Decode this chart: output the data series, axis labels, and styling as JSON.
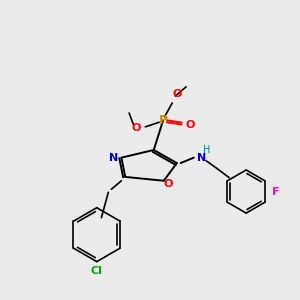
{
  "background_color": "#ebebeb",
  "figsize": [
    3.0,
    3.0
  ],
  "dpi": 100,
  "colors": {
    "bond": "#000000",
    "N": "#0000CC",
    "O": "#FF0000",
    "P": "#CC8800",
    "Cl": "#00AA00",
    "F": "#FF00CC",
    "NH_H": "#008888",
    "bg": "#ebebeb"
  }
}
